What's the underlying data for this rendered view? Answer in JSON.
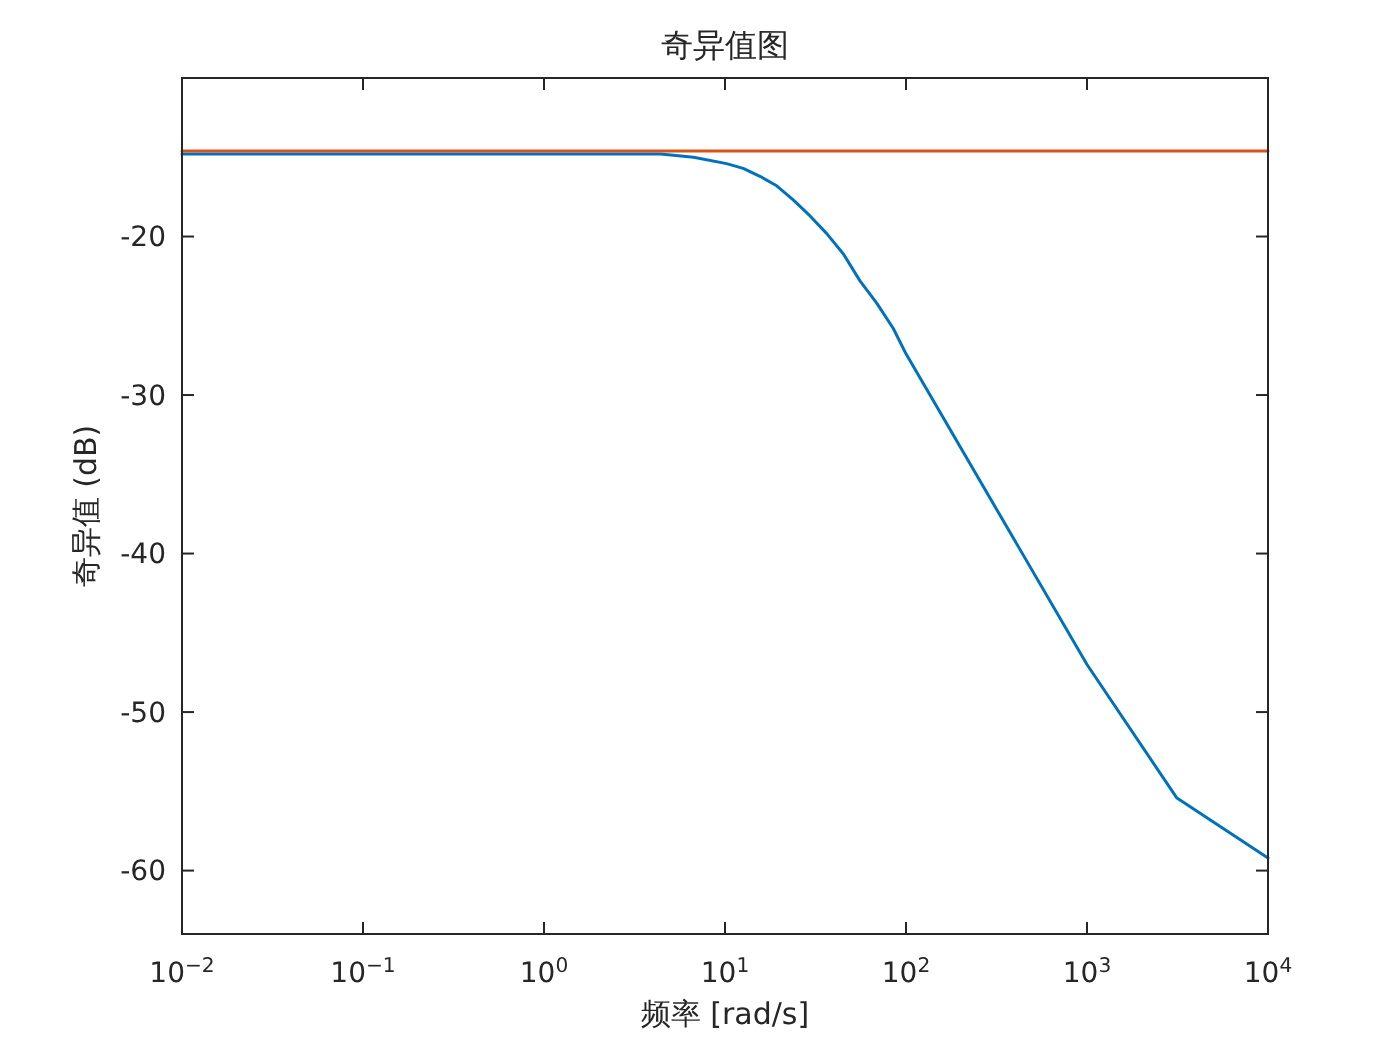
{
  "chart_data": {
    "type": "line",
    "title": "奇异值图",
    "xlabel": "频率 [rad/s]",
    "ylabel": "奇异值 (dB)",
    "log": "x",
    "xlim": [
      0.01,
      10000
    ],
    "ylim": [
      -64,
      -10
    ],
    "xticks": [
      {
        "value": 0.01,
        "label": "10$^{−2}$"
      },
      {
        "value": 0.1,
        "label": "10$^{−1}$"
      },
      {
        "value": 1,
        "label": "10$^{0}$"
      },
      {
        "value": 10,
        "label": "10$^{1}$"
      },
      {
        "value": 100,
        "label": "10$^{2}$"
      },
      {
        "value": 1000,
        "label": "10$^{3}$"
      },
      {
        "value": 10000,
        "label": "10$^{4}$"
      }
    ],
    "yticks": [
      -60,
      -50,
      -40,
      -30,
      -20
    ],
    "series": [
      {
        "color": "#0072bd",
        "x": [
          0.01,
          0.1,
          1,
          4.4,
          6.7,
          10.2,
          12.6,
          15.6,
          19.3,
          23.9,
          29.5,
          36.4,
          45.1,
          55.7,
          68.9,
          85.1,
          100,
          1000,
          3126,
          10000
        ],
        "values": [
          -14.8,
          -14.8,
          -14.8,
          -14.8,
          -15,
          -15.4,
          -15.7,
          -16.2,
          -16.8,
          -17.7,
          -18.7,
          -19.8,
          -21.1,
          -22.8,
          -24.2,
          -25.8,
          -27.4,
          -47,
          -55.4,
          -59.2
        ]
      },
      {
        "color": "#d95319",
        "x": [
          0.01,
          10000
        ],
        "values": [
          -14.6,
          -14.6
        ]
      }
    ]
  }
}
